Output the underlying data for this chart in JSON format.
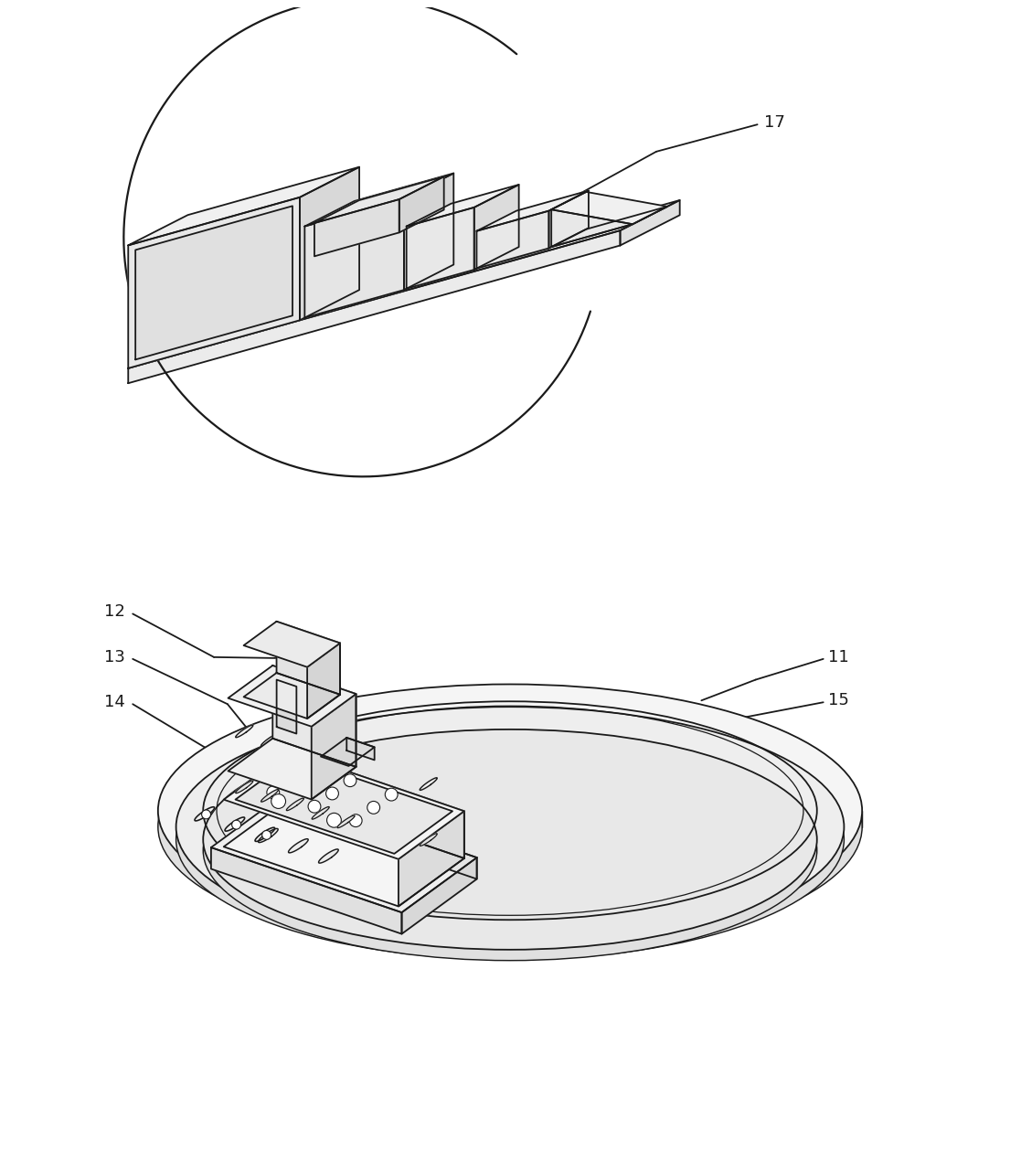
{
  "bg_color": "#ffffff",
  "line_color": "#1a1a1a",
  "line_width": 1.3,
  "label_fontsize": 13,
  "fig_width": 11.17,
  "fig_height": 12.58,
  "dpi": 100
}
